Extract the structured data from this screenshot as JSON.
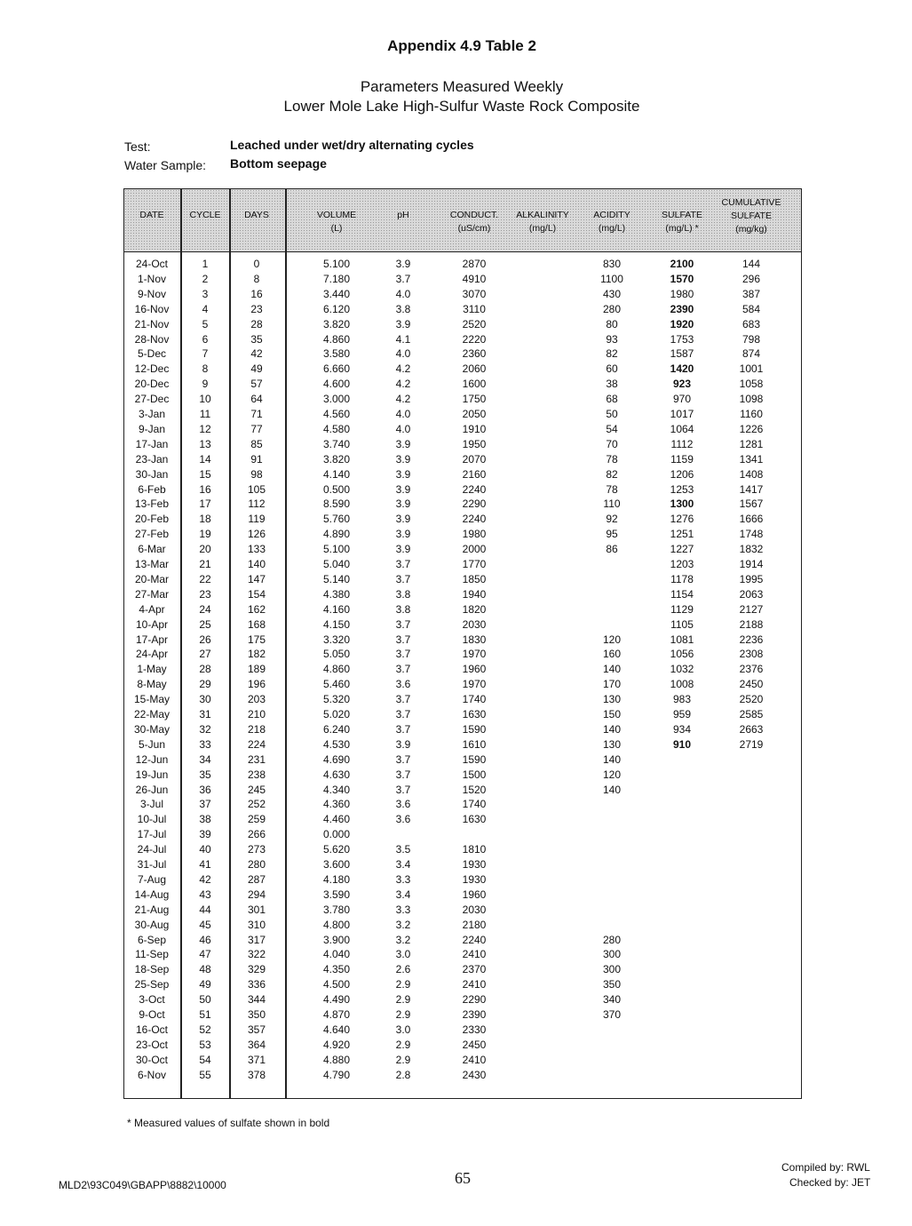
{
  "document": {
    "title": "Appendix 4.9 Table 2",
    "subtitle1": "Parameters Measured Weekly",
    "subtitle2": "Lower Mole Lake High-Sulfur Waste Rock Composite",
    "test_label": "Test:",
    "test_value": "Leached under wet/dry alternating cycles",
    "sample_label": "Water Sample:",
    "sample_value": "Bottom seepage",
    "footnote": "* Measured values of sulfate shown in bold",
    "file_path": "MLD2\\93C049\\GBAPP\\8882\\10000",
    "page_number": "65",
    "compiled_by": "Compiled by:  RWL",
    "checked_by": "Checked by:  JET"
  },
  "table": {
    "headers": [
      [
        "DATE",
        ""
      ],
      [
        "CYCLE",
        ""
      ],
      [
        "DAYS",
        ""
      ],
      [
        "VOLUME",
        "(L)"
      ],
      [
        "pH",
        ""
      ],
      [
        "CONDUCT.",
        "(uS/cm)"
      ],
      [
        "ALKALINITY",
        "(mg/L)"
      ],
      [
        "ACIDITY",
        "(mg/L)"
      ],
      [
        "SULFATE",
        "(mg/L) *"
      ],
      [
        "CUMULATIVE SULFATE",
        "(mg/kg)"
      ]
    ],
    "rows": [
      [
        "24-Oct",
        "1",
        "0",
        "5.100",
        "3.9",
        "2870",
        "",
        "830",
        "2100",
        "144",
        true
      ],
      [
        "1-Nov",
        "2",
        "8",
        "7.180",
        "3.7",
        "4910",
        "",
        "1100",
        "1570",
        "296",
        true
      ],
      [
        "9-Nov",
        "3",
        "16",
        "3.440",
        "4.0",
        "3070",
        "",
        "430",
        "1980",
        "387",
        false
      ],
      [
        "16-Nov",
        "4",
        "23",
        "6.120",
        "3.8",
        "3110",
        "",
        "280",
        "2390",
        "584",
        true
      ],
      [
        "21-Nov",
        "5",
        "28",
        "3.820",
        "3.9",
        "2520",
        "",
        "80",
        "1920",
        "683",
        true
      ],
      [
        "28-Nov",
        "6",
        "35",
        "4.860",
        "4.1",
        "2220",
        "",
        "93",
        "1753",
        "798",
        false
      ],
      [
        "5-Dec",
        "7",
        "42",
        "3.580",
        "4.0",
        "2360",
        "",
        "82",
        "1587",
        "874",
        false
      ],
      [
        "12-Dec",
        "8",
        "49",
        "6.660",
        "4.2",
        "2060",
        "",
        "60",
        "1420",
        "1001",
        true
      ],
      [
        "20-Dec",
        "9",
        "57",
        "4.600",
        "4.2",
        "1600",
        "",
        "38",
        "923",
        "1058",
        true
      ],
      [
        "27-Dec",
        "10",
        "64",
        "3.000",
        "4.2",
        "1750",
        "",
        "68",
        "970",
        "1098",
        false
      ],
      [
        "3-Jan",
        "11",
        "71",
        "4.560",
        "4.0",
        "2050",
        "",
        "50",
        "1017",
        "1160",
        false
      ],
      [
        "9-Jan",
        "12",
        "77",
        "4.580",
        "4.0",
        "1910",
        "",
        "54",
        "1064",
        "1226",
        false
      ],
      [
        "17-Jan",
        "13",
        "85",
        "3.740",
        "3.9",
        "1950",
        "",
        "70",
        "1112",
        "1281",
        false
      ],
      [
        "23-Jan",
        "14",
        "91",
        "3.820",
        "3.9",
        "2070",
        "",
        "78",
        "1159",
        "1341",
        false
      ],
      [
        "30-Jan",
        "15",
        "98",
        "4.140",
        "3.9",
        "2160",
        "",
        "82",
        "1206",
        "1408",
        false
      ],
      [
        "6-Feb",
        "16",
        "105",
        "0.500",
        "3.9",
        "2240",
        "",
        "78",
        "1253",
        "1417",
        false
      ],
      [
        "13-Feb",
        "17",
        "112",
        "8.590",
        "3.9",
        "2290",
        "",
        "110",
        "1300",
        "1567",
        true
      ],
      [
        "20-Feb",
        "18",
        "119",
        "5.760",
        "3.9",
        "2240",
        "",
        "92",
        "1276",
        "1666",
        false
      ],
      [
        "27-Feb",
        "19",
        "126",
        "4.890",
        "3.9",
        "1980",
        "",
        "95",
        "1251",
        "1748",
        false
      ],
      [
        "6-Mar",
        "20",
        "133",
        "5.100",
        "3.9",
        "2000",
        "",
        "86",
        "1227",
        "1832",
        false
      ],
      [
        "13-Mar",
        "21",
        "140",
        "5.040",
        "3.7",
        "1770",
        "",
        "",
        "1203",
        "1914",
        false
      ],
      [
        "20-Mar",
        "22",
        "147",
        "5.140",
        "3.7",
        "1850",
        "",
        "",
        "1178",
        "1995",
        false
      ],
      [
        "27-Mar",
        "23",
        "154",
        "4.380",
        "3.8",
        "1940",
        "",
        "",
        "1154",
        "2063",
        false
      ],
      [
        "4-Apr",
        "24",
        "162",
        "4.160",
        "3.8",
        "1820",
        "",
        "",
        "1129",
        "2127",
        false
      ],
      [
        "10-Apr",
        "25",
        "168",
        "4.150",
        "3.7",
        "2030",
        "",
        "",
        "1105",
        "2188",
        false
      ],
      [
        "17-Apr",
        "26",
        "175",
        "3.320",
        "3.7",
        "1830",
        "",
        "120",
        "1081",
        "2236",
        false
      ],
      [
        "24-Apr",
        "27",
        "182",
        "5.050",
        "3.7",
        "1970",
        "",
        "160",
        "1056",
        "2308",
        false
      ],
      [
        "1-May",
        "28",
        "189",
        "4.860",
        "3.7",
        "1960",
        "",
        "140",
        "1032",
        "2376",
        false
      ],
      [
        "8-May",
        "29",
        "196",
        "5.460",
        "3.6",
        "1970",
        "",
        "170",
        "1008",
        "2450",
        false
      ],
      [
        "15-May",
        "30",
        "203",
        "5.320",
        "3.7",
        "1740",
        "",
        "130",
        "983",
        "2520",
        false
      ],
      [
        "22-May",
        "31",
        "210",
        "5.020",
        "3.7",
        "1630",
        "",
        "150",
        "959",
        "2585",
        false
      ],
      [
        "30-May",
        "32",
        "218",
        "6.240",
        "3.7",
        "1590",
        "",
        "140",
        "934",
        "2663",
        false
      ],
      [
        "5-Jun",
        "33",
        "224",
        "4.530",
        "3.9",
        "1610",
        "",
        "130",
        "910",
        "2719",
        true
      ],
      [
        "12-Jun",
        "34",
        "231",
        "4.690",
        "3.7",
        "1590",
        "",
        "140",
        "",
        "",
        false
      ],
      [
        "19-Jun",
        "35",
        "238",
        "4.630",
        "3.7",
        "1500",
        "",
        "120",
        "",
        "",
        false
      ],
      [
        "26-Jun",
        "36",
        "245",
        "4.340",
        "3.7",
        "1520",
        "",
        "140",
        "",
        "",
        false
      ],
      [
        "3-Jul",
        "37",
        "252",
        "4.360",
        "3.6",
        "1740",
        "",
        "",
        "",
        "",
        false
      ],
      [
        "10-Jul",
        "38",
        "259",
        "4.460",
        "3.6",
        "1630",
        "",
        "",
        "",
        "",
        false
      ],
      [
        "17-Jul",
        "39",
        "266",
        "0.000",
        "",
        "",
        "",
        "",
        "",
        "",
        false
      ],
      [
        "24-Jul",
        "40",
        "273",
        "5.620",
        "3.5",
        "1810",
        "",
        "",
        "",
        "",
        false
      ],
      [
        "31-Jul",
        "41",
        "280",
        "3.600",
        "3.4",
        "1930",
        "",
        "",
        "",
        "",
        false
      ],
      [
        "7-Aug",
        "42",
        "287",
        "4.180",
        "3.3",
        "1930",
        "",
        "",
        "",
        "",
        false
      ],
      [
        "14-Aug",
        "43",
        "294",
        "3.590",
        "3.4",
        "1960",
        "",
        "",
        "",
        "",
        false
      ],
      [
        "21-Aug",
        "44",
        "301",
        "3.780",
        "3.3",
        "2030",
        "",
        "",
        "",
        "",
        false
      ],
      [
        "30-Aug",
        "45",
        "310",
        "4.800",
        "3.2",
        "2180",
        "",
        "",
        "",
        "",
        false
      ],
      [
        "6-Sep",
        "46",
        "317",
        "3.900",
        "3.2",
        "2240",
        "",
        "280",
        "",
        "",
        false
      ],
      [
        "11-Sep",
        "47",
        "322",
        "4.040",
        "3.0",
        "2410",
        "",
        "300",
        "",
        "",
        false
      ],
      [
        "18-Sep",
        "48",
        "329",
        "4.350",
        "2.6",
        "2370",
        "",
        "300",
        "",
        "",
        false
      ],
      [
        "25-Sep",
        "49",
        "336",
        "4.500",
        "2.9",
        "2410",
        "",
        "350",
        "",
        "",
        false
      ],
      [
        "3-Oct",
        "50",
        "344",
        "4.490",
        "2.9",
        "2290",
        "",
        "340",
        "",
        "",
        false
      ],
      [
        "9-Oct",
        "51",
        "350",
        "4.870",
        "2.9",
        "2390",
        "",
        "370",
        "",
        "",
        false
      ],
      [
        "16-Oct",
        "52",
        "357",
        "4.640",
        "3.0",
        "2330",
        "",
        "",
        "",
        "",
        false
      ],
      [
        "23-Oct",
        "53",
        "364",
        "4.920",
        "2.9",
        "2450",
        "",
        "",
        "",
        "",
        false
      ],
      [
        "30-Oct",
        "54",
        "371",
        "4.880",
        "2.9",
        "2410",
        "",
        "",
        "",
        "",
        false
      ],
      [
        "6-Nov",
        "55",
        "378",
        "4.790",
        "2.8",
        "2430",
        "",
        "",
        "",
        "",
        false
      ]
    ]
  }
}
